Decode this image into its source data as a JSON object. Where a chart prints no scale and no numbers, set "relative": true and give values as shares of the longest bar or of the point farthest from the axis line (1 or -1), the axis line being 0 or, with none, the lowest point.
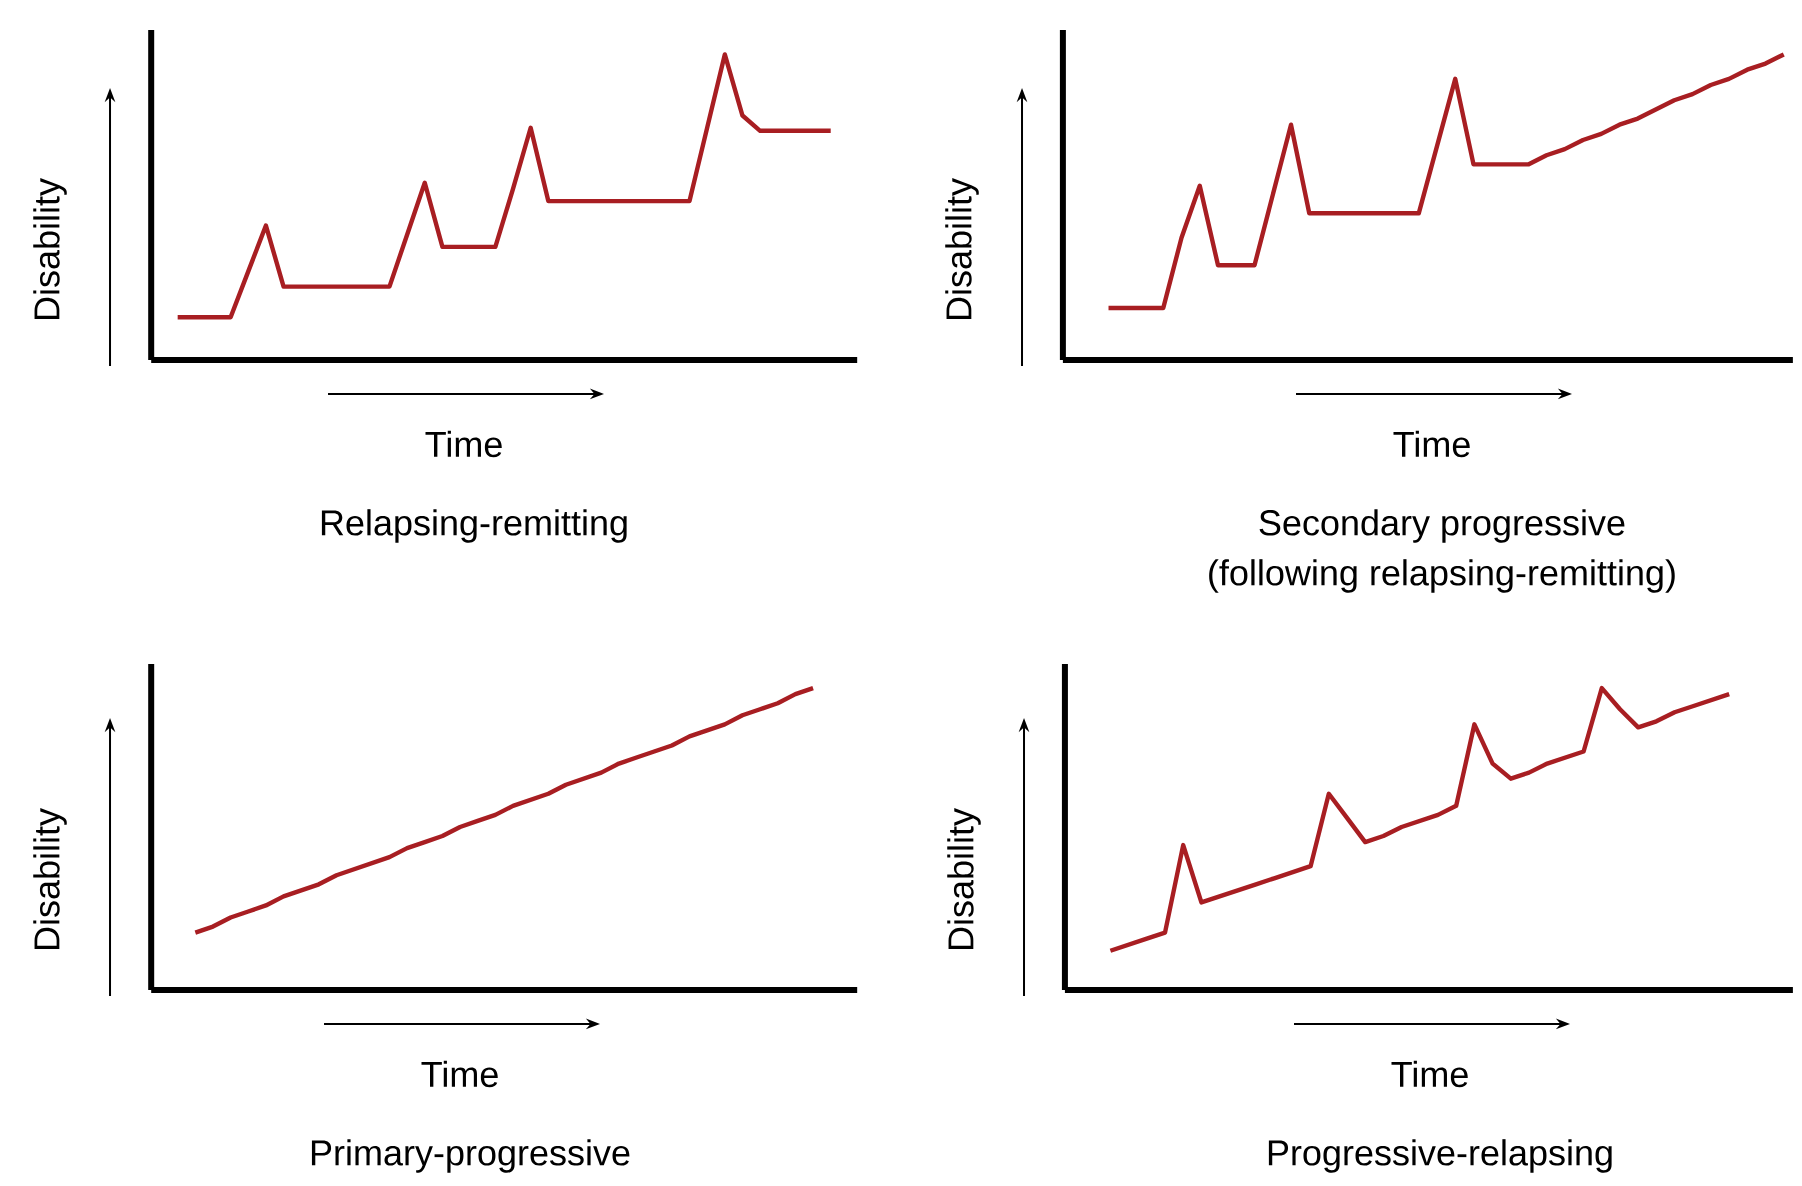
{
  "chart_data": [
    {
      "type": "line",
      "title": "Relapsing-remitting",
      "xlabel": "Time",
      "ylabel": "Disability",
      "relative": true,
      "tick_labels": false,
      "categories": [
        null,
        null,
        null,
        null,
        null,
        null,
        null,
        null,
        null,
        null,
        null,
        null,
        null,
        null,
        null,
        null,
        null,
        null,
        null,
        null,
        null,
        null,
        null,
        null,
        null,
        null,
        null,
        null,
        null,
        null,
        null,
        null,
        null,
        null,
        null,
        null,
        null,
        null,
        null,
        null
      ],
      "series": [
        {
          "color": "#a81e22",
          "values": [
            null,
            0.14,
            0.14,
            0.14,
            0.14,
            0.29,
            0.44,
            0.24,
            0.24,
            0.24,
            0.24,
            0.24,
            0.24,
            0.24,
            0.41,
            0.58,
            0.37,
            0.37,
            0.37,
            0.37,
            0.56,
            0.76,
            0.52,
            0.52,
            0.52,
            0.52,
            0.52,
            0.52,
            0.52,
            0.52,
            0.52,
            0.76,
            1,
            0.8,
            0.75,
            0.75,
            0.75,
            0.75,
            0.75,
            null
          ]
        }
      ]
    },
    {
      "type": "line",
      "title": "Secondary progressive",
      "subtitle": "(following relapsing-remitting)",
      "xlabel": "Time",
      "ylabel": "Disability",
      "relative": true,
      "tick_labels": false,
      "categories": [
        null,
        null,
        null,
        null,
        null,
        null,
        null,
        null,
        null,
        null,
        null,
        null,
        null,
        null,
        null,
        null,
        null,
        null,
        null,
        null,
        null,
        null,
        null,
        null,
        null,
        null,
        null,
        null,
        null,
        null,
        null,
        null,
        null,
        null,
        null,
        null,
        null,
        null,
        null,
        null
      ],
      "series": [
        {
          "color": "#a81e22",
          "values": [
            null,
            null,
            0.17,
            0.17,
            0.17,
            0.17,
            0.4,
            0.57,
            0.31,
            0.31,
            0.31,
            0.54,
            0.77,
            0.48,
            0.48,
            0.48,
            0.48,
            0.48,
            0.48,
            0.48,
            0.7,
            0.92,
            0.64,
            0.64,
            0.64,
            0.64,
            0.67,
            0.69,
            0.72,
            0.74,
            0.77,
            0.79,
            0.82,
            0.85,
            0.87,
            0.9,
            0.92,
            0.95,
            0.97,
            1
          ]
        }
      ]
    },
    {
      "type": "line",
      "title": "Primary-progressive",
      "xlabel": "Time",
      "ylabel": "Disability",
      "relative": true,
      "tick_labels": false,
      "categories": [
        null,
        null,
        null,
        null,
        null,
        null,
        null,
        null,
        null,
        null,
        null,
        null,
        null,
        null,
        null,
        null,
        null,
        null,
        null,
        null,
        null,
        null,
        null,
        null,
        null,
        null,
        null,
        null,
        null,
        null,
        null,
        null,
        null,
        null,
        null,
        null,
        null,
        null,
        null,
        null
      ],
      "series": [
        {
          "color": "#a81e22",
          "values": [
            null,
            null,
            0.19,
            0.21,
            0.24,
            0.26,
            0.28,
            0.31,
            0.33,
            0.35,
            0.38,
            0.4,
            0.42,
            0.44,
            0.47,
            0.49,
            0.51,
            0.54,
            0.56,
            0.58,
            0.61,
            0.63,
            0.65,
            0.68,
            0.7,
            0.72,
            0.75,
            0.77,
            0.79,
            0.81,
            0.84,
            0.86,
            0.88,
            0.91,
            0.93,
            0.95,
            0.98,
            1,
            null,
            null
          ]
        }
      ]
    },
    {
      "type": "line",
      "title": "Progressive-relapsing",
      "xlabel": "Time",
      "ylabel": "Disability",
      "relative": true,
      "tick_labels": false,
      "categories": [
        null,
        null,
        null,
        null,
        null,
        null,
        null,
        null,
        null,
        null,
        null,
        null,
        null,
        null,
        null,
        null,
        null,
        null,
        null,
        null,
        null,
        null,
        null,
        null,
        null,
        null,
        null,
        null,
        null,
        null,
        null,
        null,
        null,
        null,
        null,
        null,
        null,
        null,
        null,
        null
      ],
      "series": [
        {
          "color": "#a81e22",
          "values": [
            null,
            null,
            0.13,
            0.15,
            0.17,
            0.19,
            0.48,
            0.29,
            0.31,
            0.33,
            0.35,
            0.37,
            0.39,
            0.41,
            0.65,
            0.57,
            0.49,
            0.51,
            0.54,
            0.56,
            0.58,
            0.61,
            0.88,
            0.75,
            0.7,
            0.72,
            0.75,
            0.77,
            0.79,
            1,
            0.93,
            0.87,
            0.89,
            0.92,
            0.94,
            0.96,
            0.98,
            null,
            null,
            null
          ]
        }
      ]
    }
  ]
}
